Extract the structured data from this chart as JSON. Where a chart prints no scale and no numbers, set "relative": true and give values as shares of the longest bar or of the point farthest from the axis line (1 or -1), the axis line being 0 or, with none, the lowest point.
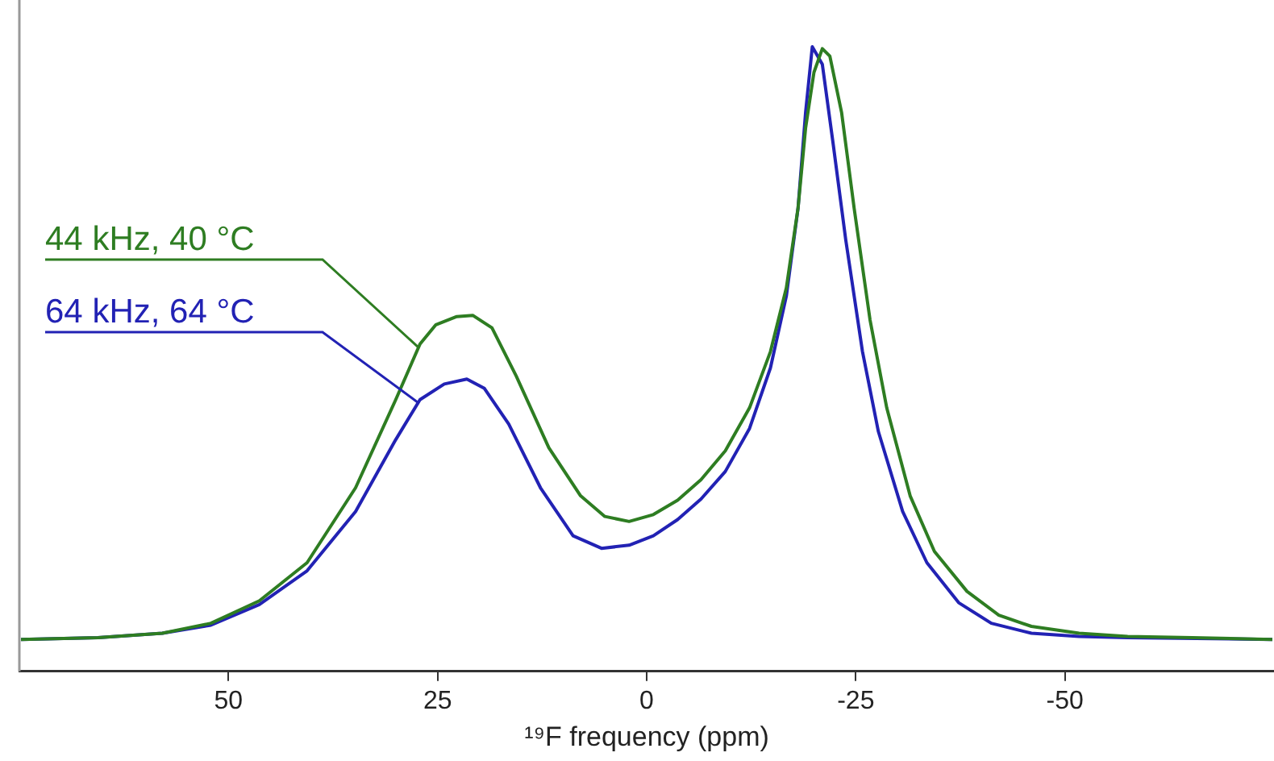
{
  "chart_data": {
    "type": "line",
    "xlabel": "¹⁹F frequency (ppm)",
    "relative": true,
    "xlim": [
      75,
      -75
    ],
    "xticks": [
      50,
      25,
      0,
      -25,
      -50
    ],
    "grid": false,
    "legend": false,
    "marker": "none",
    "line_style": "solid",
    "series": [
      {
        "name": "44 kHz, 40 °C",
        "color": "#2e7d22",
        "x": [
          74.8,
          65.6,
          57.9,
          52.1,
          46.3,
          40.6,
          34.8,
          30.0,
          27.1,
          25.2,
          22.7,
          20.8,
          18.5,
          15.6,
          11.7,
          7.9,
          5.0,
          2.1,
          -0.8,
          -3.7,
          -6.5,
          -9.4,
          -12.3,
          -14.8,
          -16.7,
          -18.1,
          -19.0,
          -20.0,
          -21.0,
          -21.9,
          -23.3,
          -24.8,
          -26.7,
          -28.7,
          -31.5,
          -34.4,
          -38.3,
          -42.1,
          -46.0,
          -51.7,
          -57.5,
          -65.2,
          -74.8
        ],
        "values": [
          0.051,
          0.054,
          0.061,
          0.077,
          0.113,
          0.174,
          0.294,
          0.435,
          0.524,
          0.555,
          0.568,
          0.57,
          0.55,
          0.473,
          0.358,
          0.281,
          0.248,
          0.24,
          0.251,
          0.274,
          0.307,
          0.353,
          0.422,
          0.512,
          0.614,
          0.742,
          0.87,
          0.959,
          0.997,
          0.985,
          0.895,
          0.742,
          0.563,
          0.422,
          0.281,
          0.192,
          0.128,
          0.09,
          0.072,
          0.061,
          0.056,
          0.054,
          0.051
        ]
      },
      {
        "name": "64 kHz, 64 °C",
        "color": "#2222b4",
        "x": [
          74.8,
          65.6,
          57.9,
          52.1,
          46.3,
          40.6,
          34.8,
          30.0,
          27.1,
          24.2,
          21.5,
          19.4,
          16.5,
          12.7,
          8.8,
          5.4,
          2.1,
          -0.8,
          -3.7,
          -6.5,
          -9.4,
          -12.3,
          -14.8,
          -16.7,
          -18.1,
          -19.0,
          -19.8,
          -21.0,
          -22.3,
          -23.8,
          -25.8,
          -27.7,
          -30.6,
          -33.5,
          -37.3,
          -41.2,
          -46.0,
          -51.7,
          -57.5,
          -74.8
        ],
        "values": [
          0.051,
          0.054,
          0.061,
          0.074,
          0.107,
          0.161,
          0.256,
          0.371,
          0.435,
          0.46,
          0.468,
          0.453,
          0.396,
          0.294,
          0.217,
          0.197,
          0.202,
          0.217,
          0.243,
          0.276,
          0.32,
          0.389,
          0.486,
          0.601,
          0.742,
          0.895,
          1,
          0.972,
          0.844,
          0.691,
          0.512,
          0.384,
          0.256,
          0.174,
          0.11,
          0.077,
          0.061,
          0.056,
          0.054,
          0.051
        ]
      }
    ]
  }
}
